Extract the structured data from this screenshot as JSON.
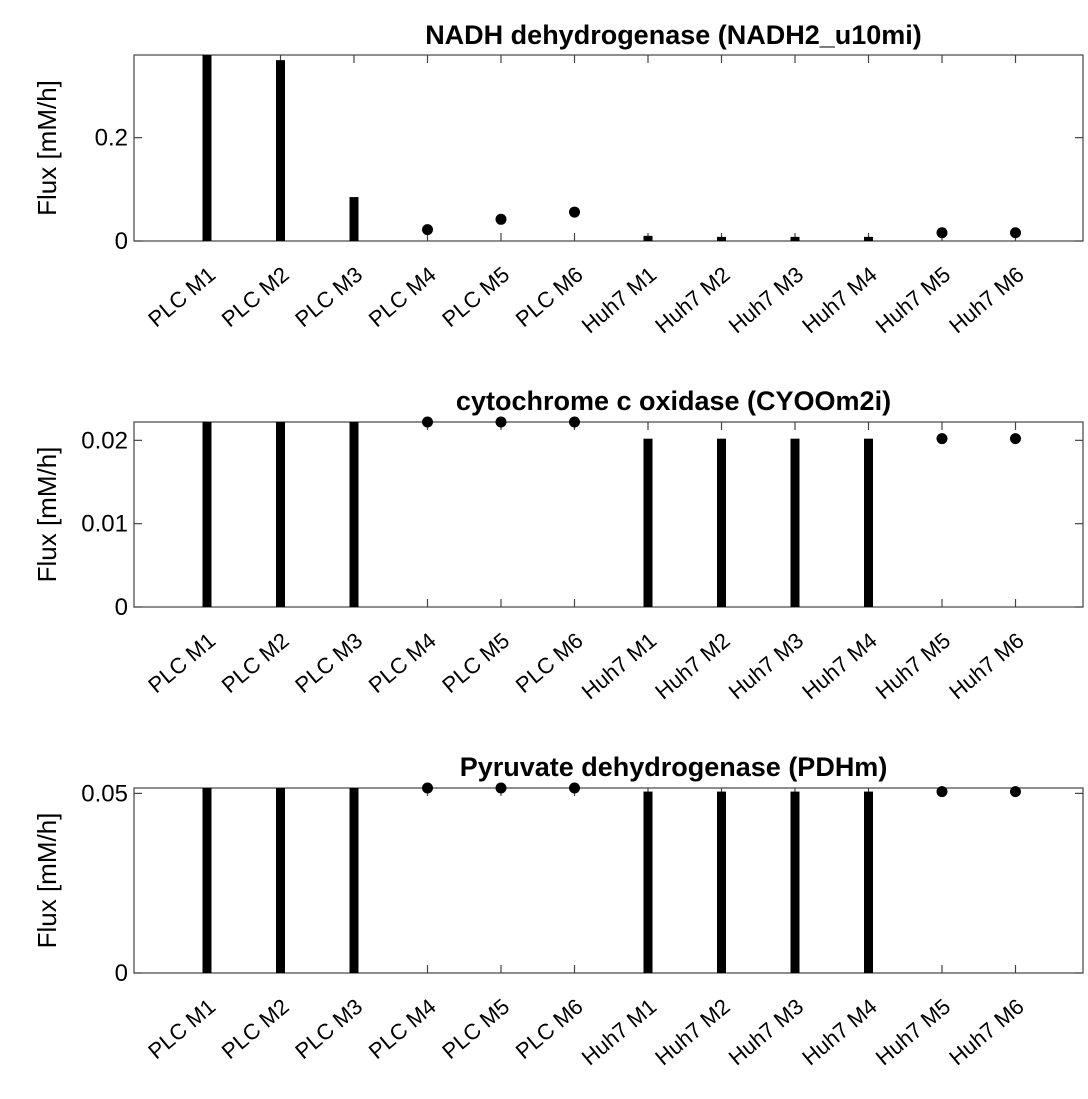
{
  "chart_data": [
    {
      "type": "bar",
      "title": "NADH dehydrogenase (NADH2_u10mi)",
      "ylabel": "Flux [mM/h]",
      "xlabel": "",
      "ylim": [
        0,
        0.36
      ],
      "yticks": [
        0,
        0.2
      ],
      "ytick_labels": [
        "0",
        "0.2"
      ],
      "categories": [
        "PLC M1",
        "PLC M2",
        "PLC M3",
        "PLC M4",
        "PLC M5",
        "PLC M6",
        "Huh7 M1",
        "Huh7 M2",
        "Huh7 M3",
        "Huh7 M4",
        "Huh7 M5",
        "Huh7 M6"
      ],
      "values": [
        0.36,
        0.35,
        0.085,
        0.022,
        0.042,
        0.056,
        0.01,
        0.008,
        0.008,
        0.008,
        0.016,
        0.016
      ],
      "marker_style": [
        "bar",
        "bar",
        "bar",
        "dot",
        "dot",
        "dot",
        "bar",
        "bar",
        "bar",
        "bar",
        "dot",
        "dot"
      ],
      "grid": false,
      "color": "#000000"
    },
    {
      "type": "bar",
      "title": "cytochrome c oxidase (CYOOm2i)",
      "ylabel": "Flux [mM/h]",
      "xlabel": "",
      "ylim": [
        0,
        0.0222
      ],
      "yticks": [
        0,
        0.01,
        0.02
      ],
      "ytick_labels": [
        "0",
        "0.01",
        "0.02"
      ],
      "categories": [
        "PLC M1",
        "PLC M2",
        "PLC M3",
        "PLC M4",
        "PLC M5",
        "PLC M6",
        "Huh7 M1",
        "Huh7 M2",
        "Huh7 M3",
        "Huh7 M4",
        "Huh7 M5",
        "Huh7 M6"
      ],
      "values": [
        0.0222,
        0.0222,
        0.0222,
        0.0222,
        0.0222,
        0.0222,
        0.0202,
        0.0202,
        0.0202,
        0.0202,
        0.0202,
        0.0202
      ],
      "marker_style": [
        "bar",
        "bar",
        "bar",
        "dot",
        "dot",
        "dot",
        "bar",
        "bar",
        "bar",
        "bar",
        "dot",
        "dot"
      ],
      "grid": false,
      "color": "#000000"
    },
    {
      "type": "bar",
      "title": "Pyruvate dehydrogenase (PDHm)",
      "ylabel": "Flux [mM/h]",
      "xlabel": "",
      "ylim": [
        0,
        0.0515
      ],
      "yticks": [
        0,
        0.05
      ],
      "ytick_labels": [
        "0",
        "0.05"
      ],
      "categories": [
        "PLC M1",
        "PLC M2",
        "PLC M3",
        "PLC M4",
        "PLC M5",
        "PLC M6",
        "Huh7 M1",
        "Huh7 M2",
        "Huh7 M3",
        "Huh7 M4",
        "Huh7 M5",
        "Huh7 M6"
      ],
      "values": [
        0.0515,
        0.0515,
        0.0515,
        0.0515,
        0.0515,
        0.0515,
        0.0505,
        0.0505,
        0.0505,
        0.0505,
        0.0505,
        0.0505
      ],
      "marker_style": [
        "bar",
        "bar",
        "bar",
        "dot",
        "dot",
        "dot",
        "bar",
        "bar",
        "bar",
        "bar",
        "dot",
        "dot"
      ],
      "grid": false,
      "color": "#000000"
    }
  ]
}
